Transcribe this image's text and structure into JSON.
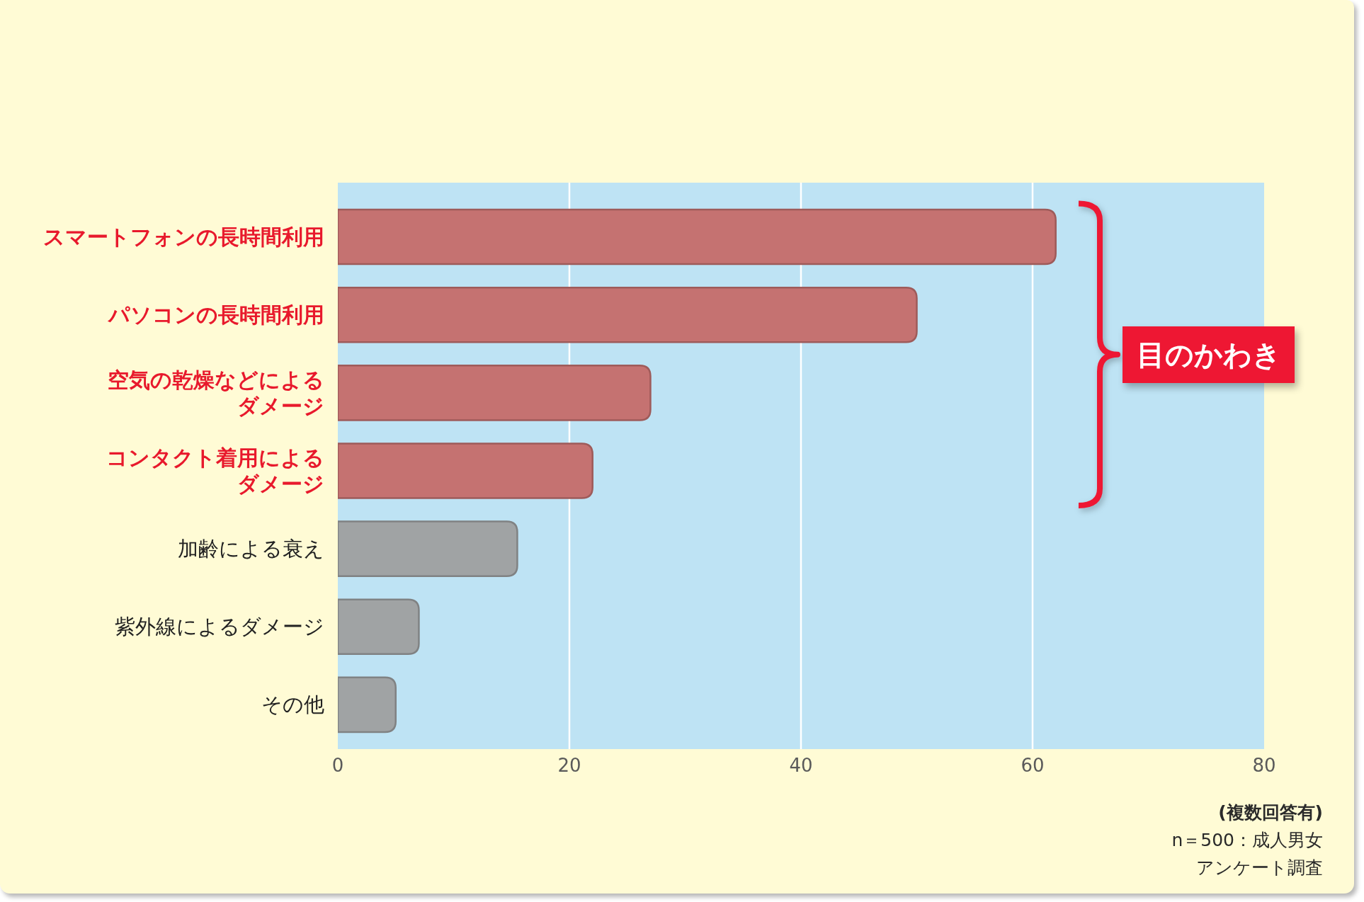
{
  "chart_data": {
    "type": "bar",
    "orientation": "horizontal",
    "categories": [
      "スマートフォンの長時間利用",
      "パソコンの長時間利用",
      "空気の乾燥などによるダメージ",
      "コンタクト着用によるダメージ",
      "加齢による衰え",
      "紫外線によるダメージ",
      "その他"
    ],
    "values": [
      62,
      50,
      27,
      22,
      15.5,
      7,
      5
    ],
    "colors": [
      "#c57271",
      "#c57271",
      "#c57271",
      "#c57271",
      "#a0a3a4",
      "#a0a3a4",
      "#a0a3a4"
    ],
    "xlim": [
      0,
      80
    ],
    "xticks": [
      0,
      20,
      40,
      60,
      80
    ],
    "grid": "x",
    "annotations": [
      "目のかわき",
      "(複数回答有)",
      "n＝500：成人男女",
      "アンケート調査"
    ]
  }
}
